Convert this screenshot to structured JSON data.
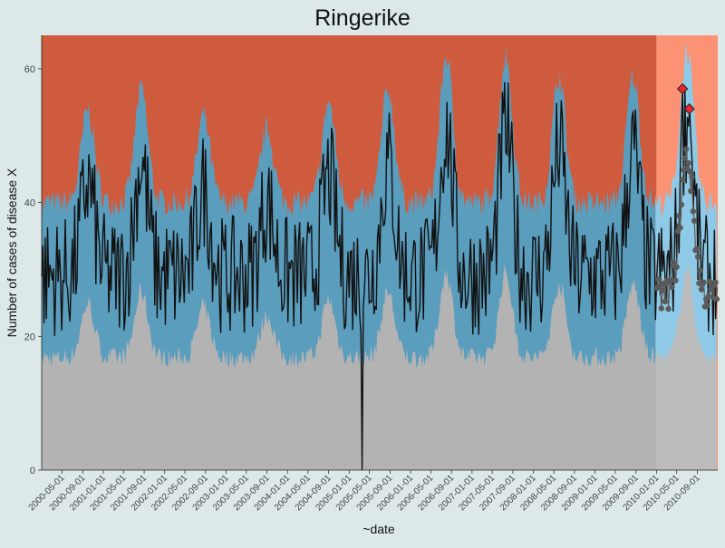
{
  "chart_data": {
    "type": "line",
    "title": "Ringerike",
    "xlabel": "~date",
    "ylabel": "Number of cases of disease X",
    "ylim": [
      0,
      65
    ],
    "yticks": [
      0,
      20,
      40,
      60
    ],
    "x_range": [
      "2000-01-01",
      "2010-12-31"
    ],
    "xticks": [
      "2000-05-01",
      "2000-09-01",
      "2001-01-01",
      "2001-05-01",
      "2001-09-01",
      "2002-01-01",
      "2002-05-01",
      "2002-09-01",
      "2003-01-01",
      "2003-05-01",
      "2003-09-01",
      "2004-01-01",
      "2004-05-01",
      "2004-09-01",
      "2005-01-01",
      "2005-05-01",
      "2005-09-01",
      "2006-01-01",
      "2006-05-01",
      "2006-09-01",
      "2007-01-01",
      "2007-05-01",
      "2007-09-01",
      "2008-01-01",
      "2008-05-01",
      "2008-09-01",
      "2009-01-01",
      "2009-05-01",
      "2009-09-01",
      "2010-01-01",
      "2010-05-01",
      "2010-09-01"
    ],
    "shaded_period_start": "2010-01-01",
    "colors": {
      "high_zone": "#cf5b3e",
      "high_zone_forecast": "#fb9273",
      "normal_band": "#5b9dbd",
      "normal_band_forecast": "#8ecae8",
      "low_zone": "#b3b3b3",
      "low_zone_forecast": "#bcbcbc",
      "observed_line": "#111111",
      "baseline_points": "#5a5a5a",
      "outbreak_marker": "#e8262b"
    },
    "seasonal_peaks": [
      {
        "date": "2000-10-01",
        "value": 48
      },
      {
        "date": "2001-08-15",
        "value": 51
      },
      {
        "date": "2002-08-20",
        "value": 47
      },
      {
        "date": "2003-09-01",
        "value": 45
      },
      {
        "date": "2004-09-01",
        "value": 49
      },
      {
        "date": "2005-08-20",
        "value": 51
      },
      {
        "date": "2006-08-01",
        "value": 56
      },
      {
        "date": "2007-07-20",
        "value": 56
      },
      {
        "date": "2008-06-01",
        "value": 53
      },
      {
        "date": "2009-08-15",
        "value": 53
      },
      {
        "date": "2010-07-01",
        "value": 57
      }
    ],
    "min_observation": {
      "date": "2005-03-20",
      "value": 0
    },
    "outbreak_points": [
      {
        "date": "2010-06-05",
        "value": 57
      },
      {
        "date": "2010-07-15",
        "value": 54
      }
    ]
  }
}
